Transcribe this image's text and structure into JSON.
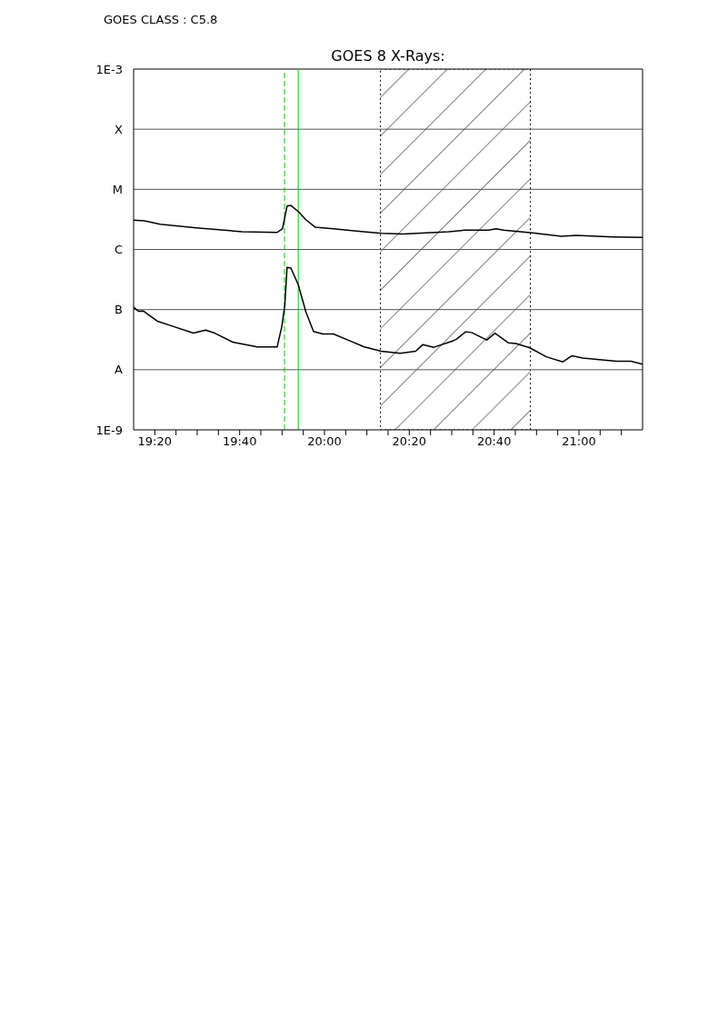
{
  "chart_data": {
    "type": "line",
    "title": "GOES 8 X-Rays:",
    "annotations": [
      "GOES CLASS : C5.8"
    ],
    "log": "y",
    "grid": "y",
    "marker": "none",
    "line_style": "solid",
    "xlim": [
      19.25,
      21.25
    ],
    "xticks": [
      {
        "value": 19.3333,
        "label": "19:20"
      },
      {
        "value": 19.4167,
        "label": null
      },
      {
        "value": 19.5,
        "label": null
      },
      {
        "value": 19.5833,
        "label": null
      },
      {
        "value": 19.6667,
        "label": "19:40"
      },
      {
        "value": 19.75,
        "label": null
      },
      {
        "value": 19.8333,
        "label": null
      },
      {
        "value": 19.9167,
        "label": null
      },
      {
        "value": 20,
        "label": "20:00"
      },
      {
        "value": 20.0833,
        "label": null
      },
      {
        "value": 20.1667,
        "label": null
      },
      {
        "value": 20.25,
        "label": null
      },
      {
        "value": 20.3333,
        "label": "20:20"
      },
      {
        "value": 20.4167,
        "label": null
      },
      {
        "value": 20.5,
        "label": null
      },
      {
        "value": 20.5833,
        "label": null
      },
      {
        "value": 20.6667,
        "label": "20:40"
      },
      {
        "value": 20.75,
        "label": null
      },
      {
        "value": 20.8333,
        "label": null
      },
      {
        "value": 20.9167,
        "label": null
      },
      {
        "value": 21,
        "label": "21:00"
      },
      {
        "value": 21.0833,
        "label": null
      },
      {
        "value": 21.1667,
        "label": null
      }
    ],
    "ylim": [
      1e-09,
      0.001
    ],
    "yticks": [
      {
        "value": 1e-09,
        "label": "1E-9"
      },
      {
        "value": 1e-08,
        "label": "A"
      },
      {
        "value": 1e-07,
        "label": "B"
      },
      {
        "value": 1e-06,
        "label": "C"
      },
      {
        "value": 1e-05,
        "label": "M"
      },
      {
        "value": 0.0001,
        "label": "X"
      },
      {
        "value": 0.001,
        "label": "1E-3"
      }
    ],
    "ref_lines": [
      {
        "axis": "x",
        "value": 19.843,
        "color": "#00cc00",
        "line_style": "dashed"
      },
      {
        "axis": "x",
        "value": 19.897,
        "color": "#00cc00",
        "line_style": "solid"
      }
    ],
    "bands": [
      {
        "axis": "x",
        "from": 20.22,
        "to": 20.809,
        "color": "#000000"
      }
    ],
    "series": [
      {
        "color": "#000000",
        "x": [
          19.25,
          19.293,
          19.354,
          19.497,
          19.677,
          19.814,
          19.835,
          19.853,
          19.868,
          19.897,
          19.927,
          19.963,
          20.035,
          20.154,
          20.226,
          20.31,
          20.488,
          20.549,
          20.645,
          20.674,
          20.704,
          20.809,
          20.931,
          20.99,
          21.133,
          21.25
        ],
        "values": [
          3.06e-06,
          2.99e-06,
          2.63e-06,
          2.29e-06,
          1.97e-06,
          1.92e-06,
          2.21e-06,
          5.26e-06,
          5.39e-06,
          4.28e-06,
          3.13e-06,
          2.35e-06,
          2.21e-06,
          1.97e-06,
          1.86e-06,
          1.8e-06,
          1.97e-06,
          2.09e-06,
          2.09e-06,
          2.21e-06,
          2.09e-06,
          1.9e-06,
          1.66e-06,
          1.71e-06,
          1.62e-06,
          1.58e-06
        ]
      },
      {
        "color": "#000000",
        "x": [
          19.25,
          19.27,
          19.288,
          19.342,
          19.402,
          19.485,
          19.533,
          19.569,
          19.64,
          19.736,
          19.814,
          19.832,
          19.844,
          19.853,
          19.868,
          19.897,
          19.927,
          19.957,
          19.993,
          20.035,
          20.107,
          20.154,
          20.223,
          20.298,
          20.358,
          20.387,
          20.43,
          20.501,
          20.519,
          20.555,
          20.578,
          20.638,
          20.67,
          20.722,
          20.752,
          20.805,
          20.872,
          20.937,
          20.973,
          21.015,
          21.147,
          21.205,
          21.25
        ],
        "values": [
          1.09e-07,
          9.35e-08,
          9.5e-08,
          6.47e-08,
          5.31e-08,
          4.06e-08,
          4.57e-08,
          4.06e-08,
          2.87e-08,
          2.39e-08,
          2.39e-08,
          5.13e-08,
          1.15e-07,
          5.03e-07,
          4.91e-07,
          2.6e-07,
          9.16e-08,
          4.32e-08,
          3.93e-08,
          3.93e-08,
          2.94e-08,
          2.42e-08,
          2.03e-08,
          1.87e-08,
          2.03e-08,
          2.62e-08,
          2.36e-08,
          2.97e-08,
          3.23e-08,
          4.27e-08,
          4.16e-08,
          3.12e-08,
          4.06e-08,
          2.81e-08,
          2.72e-08,
          2.33e-08,
          1.64e-08,
          1.35e-08,
          1.71e-08,
          1.56e-08,
          1.38e-08,
          1.38e-08,
          1.23e-08
        ]
      }
    ]
  }
}
